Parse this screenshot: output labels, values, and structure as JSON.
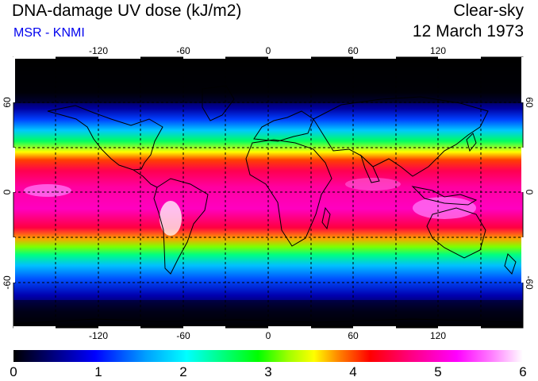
{
  "header": {
    "title": "DNA-damage UV dose (kJ/m2)",
    "subtitle": "MSR - KNMI",
    "sky_condition": "Clear-sky",
    "date": "12 March 1973"
  },
  "map": {
    "lon_ticks": [
      "-120",
      "-60",
      "0",
      "60",
      "120"
    ],
    "lat_ticks": [
      "60",
      "0",
      "-60"
    ]
  },
  "colorbar": {
    "min": 0,
    "max": 6,
    "labels": [
      "0",
      "1",
      "2",
      "3",
      "4",
      "5",
      "6"
    ],
    "stops": [
      "#000000",
      "#000080",
      "#0000ff",
      "#00a0ff",
      "#00ffff",
      "#00ff80",
      "#00ff00",
      "#a0ff00",
      "#ffff00",
      "#ff8000",
      "#ff0000",
      "#ff0080",
      "#ff00ff",
      "#ff80ff",
      "#ffffff"
    ]
  },
  "colors": {
    "title": "#000000",
    "subtitle": "#0000ee"
  }
}
